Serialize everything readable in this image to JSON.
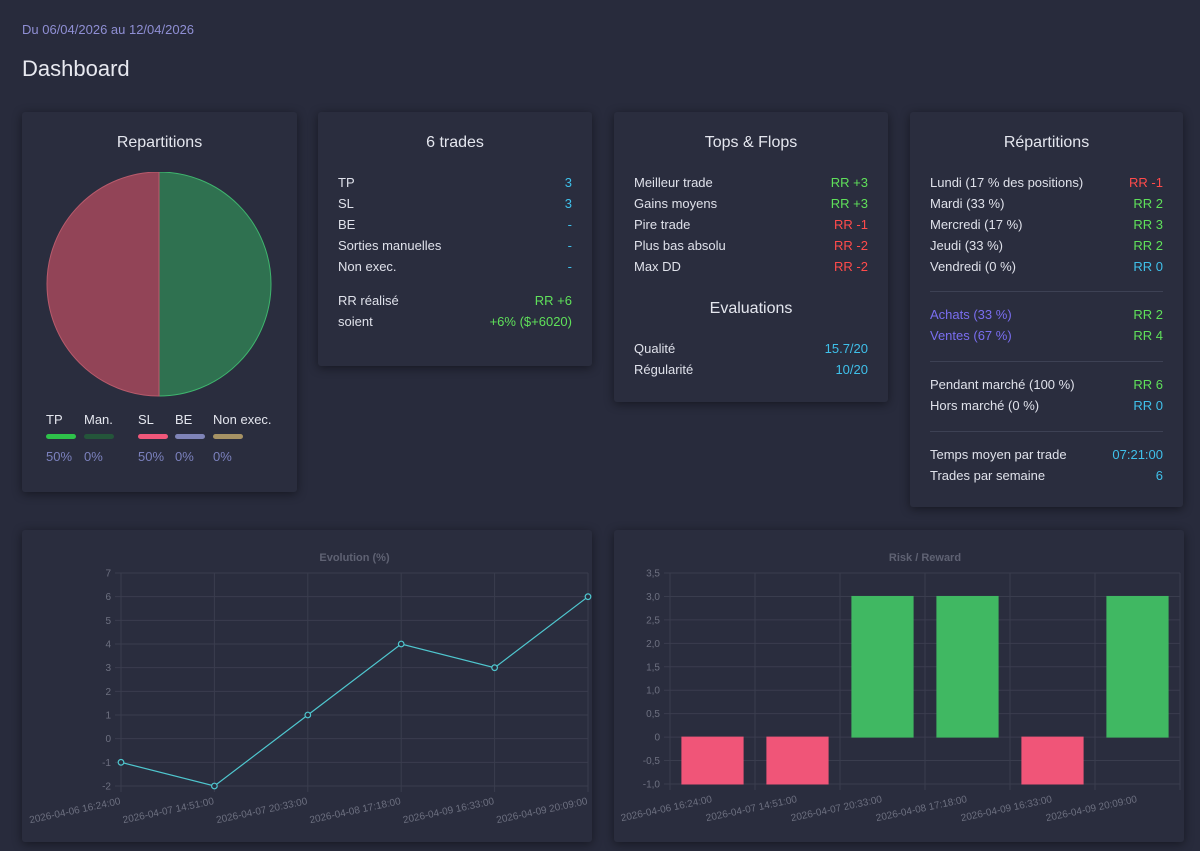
{
  "header": {
    "date_range": "Du 06/04/2026 au 12/04/2026",
    "title": "Dashboard"
  },
  "repartitions_pie": {
    "title": "Repartitions",
    "legend": [
      {
        "name": "TP",
        "pct": "50%",
        "color": "#2ec24a"
      },
      {
        "name": "Man.",
        "pct": "0%",
        "color": "#24553a"
      },
      {
        "name": "SL",
        "pct": "50%",
        "color": "#f0577a"
      },
      {
        "name": "BE",
        "pct": "0%",
        "color": "#7f84b8"
      },
      {
        "name": "Non exec.",
        "pct": "0%",
        "color": "#a69264"
      }
    ]
  },
  "trades": {
    "title": "6 trades",
    "rows": [
      {
        "label": "TP",
        "value": "3"
      },
      {
        "label": "SL",
        "value": "3"
      },
      {
        "label": "BE",
        "value": "-"
      },
      {
        "label": "Sorties manuelles",
        "value": "-"
      },
      {
        "label": "Non exec.",
        "value": "-"
      }
    ],
    "rr_label": "RR réalisé",
    "rr_value": "RR +6",
    "soient_label": "soient",
    "soient_value": "+6% ($+6020)"
  },
  "tops_flops": {
    "title": "Tops & Flops",
    "rows": [
      {
        "label": "Meilleur trade",
        "value": "RR +3"
      },
      {
        "label": "Gains moyens",
        "value": "RR +3"
      },
      {
        "label": "Pire trade",
        "value": "RR -1"
      },
      {
        "label": "Plus bas absolu",
        "value": "RR -2"
      },
      {
        "label": "Max DD",
        "value": "RR -2"
      }
    ],
    "eval_title": "Evaluations",
    "eval_rows": [
      {
        "label": "Qualité",
        "value": "15.7/20"
      },
      {
        "label": "Régularité",
        "value": "10/20"
      }
    ]
  },
  "repartitions_days": {
    "title": "Répartitions",
    "days": [
      {
        "label": "Lundi (17 % des positions)",
        "value": "RR -1"
      },
      {
        "label": "Mardi (33 %)",
        "value": "RR 2"
      },
      {
        "label": "Mercredi (17 %)",
        "value": "RR 3"
      },
      {
        "label": "Jeudi (33 %)",
        "value": "RR 2"
      },
      {
        "label": "Vendredi (0 %)",
        "value": "RR 0"
      }
    ],
    "sides": [
      {
        "label": "Achats (33 %)",
        "value": "RR 2"
      },
      {
        "label": "Ventes (67 %)",
        "value": "RR 4"
      }
    ],
    "market": [
      {
        "label": "Pendant marché (100 %)",
        "value": "RR 6"
      },
      {
        "label": "Hors marché (0 %)",
        "value": "RR 0"
      }
    ],
    "stats": [
      {
        "label": "Temps moyen par trade",
        "value": "07:21:00"
      },
      {
        "label": "Trades par semaine",
        "value": "6"
      }
    ]
  },
  "chart_data": [
    {
      "type": "pie",
      "title": "Repartitions",
      "labels": [
        "TP",
        "Man.",
        "SL",
        "BE",
        "Non exec."
      ],
      "values": [
        50,
        0,
        50,
        0,
        0
      ],
      "colors": [
        "#2f7150",
        "#24553a",
        "#924457",
        "#7f84b8",
        "#a69264"
      ]
    },
    {
      "type": "line",
      "title": "Evolution (%)",
      "x": [
        "2026-04-06 16:24:00",
        "2026-04-07 14:51:00",
        "2026-04-07 20:33:00",
        "2026-04-08 17:18:00",
        "2026-04-09 16:33:00",
        "2026-04-09 20:09:00"
      ],
      "values": [
        -1,
        -2,
        1,
        4,
        3,
        6
      ],
      "ylim": [
        -2,
        7
      ],
      "yticks": [
        "-2",
        "-1",
        "0",
        "1",
        "2",
        "3",
        "4",
        "5",
        "6",
        "7"
      ],
      "color": "#4fc7cf"
    },
    {
      "type": "bar",
      "title": "Risk / Reward",
      "categories": [
        "2026-04-06 16:24:00",
        "2026-04-07 14:51:00",
        "2026-04-07 20:33:00",
        "2026-04-08 17:18:00",
        "2026-04-09 16:33:00",
        "2026-04-09 20:09:00"
      ],
      "values": [
        -1,
        -1,
        3,
        3,
        -1,
        3
      ],
      "ylim": [
        -1,
        3.5
      ],
      "yticks": [
        "-1,0",
        "-0,5",
        "0",
        "0,5",
        "1,0",
        "1,5",
        "2,0",
        "2,5",
        "3,0",
        "3,5"
      ],
      "pos_color": "#40b862",
      "neg_color": "#f05578"
    }
  ]
}
